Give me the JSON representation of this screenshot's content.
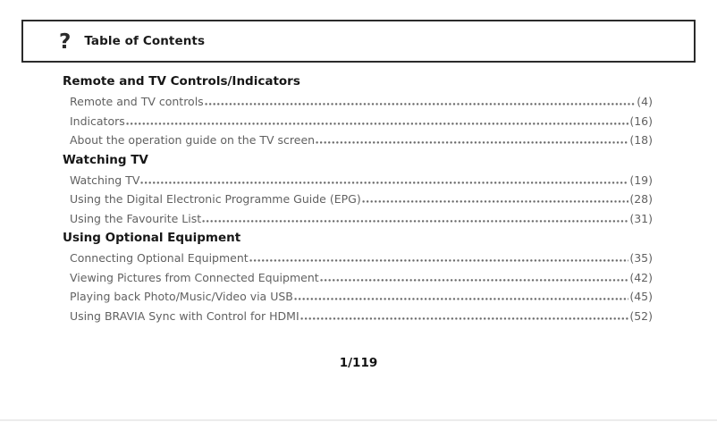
{
  "header": {
    "icon": "?",
    "title": "Table of Contents"
  },
  "sections": [
    {
      "title": "Remote and TV Controls/Indicators",
      "entries": [
        {
          "label": "Remote and TV controls",
          "page": "(4)"
        },
        {
          "label": "Indicators",
          "page": "(16)"
        },
        {
          "label": "About the operation guide on the TV screen",
          "page": "(18)"
        }
      ]
    },
    {
      "title": "Watching TV",
      "entries": [
        {
          "label": "Watching TV",
          "page": "(19)"
        },
        {
          "label": "Using the Digital Electronic Programme Guide (EPG)",
          "page": "(28)"
        },
        {
          "label": "Using the Favourite List",
          "page": "(31)"
        }
      ]
    },
    {
      "title": "Using Optional Equipment",
      "entries": [
        {
          "label": "Connecting Optional Equipment",
          "page": "(35)"
        },
        {
          "label": "Viewing Pictures from Connected Equipment",
          "page": "(42)"
        },
        {
          "label": "Playing back Photo/Music/Video via USB",
          "page": "(45)"
        },
        {
          "label": "Using BRAVIA Sync with Control for HDMI",
          "page": "(52)"
        }
      ]
    }
  ],
  "footer": {
    "page_indicator": "1/119"
  },
  "colors": {
    "border": "#2b2b2b",
    "heading_text": "#171717",
    "entry_text": "#616161",
    "bottom_line": "#ececec"
  }
}
